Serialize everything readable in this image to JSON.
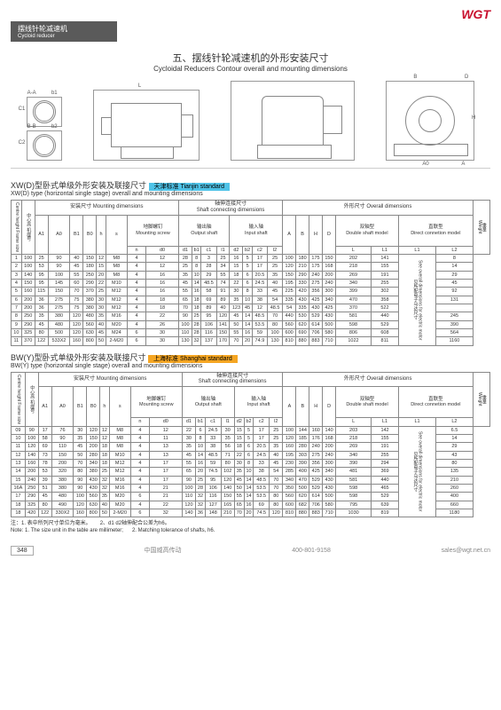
{
  "logo": "WGT",
  "header": {
    "cn": "摆线针轮减速机",
    "en": "Cycloid reducer"
  },
  "section": {
    "cn": "五、摆线针轮减速机的外形安装尺寸",
    "en": "Cycloidal Reducers Contour overall and mounting dimensions"
  },
  "diagram_labels": [
    "A-A",
    "b1",
    "C1",
    "B-B",
    "b2",
    "C2",
    "L",
    "B",
    "D",
    "B2",
    "b1",
    "H",
    "A0",
    "A"
  ],
  "sub1": {
    "title_cn": "XW(D)型卧式单级外形安装及联接尺寸",
    "title_en": "XW(D) type (horizontal single stage) overall and mounting dimensions",
    "badge": "天津标准 Tianjin standard",
    "badge_color": "#4fc3e8"
  },
  "sub2": {
    "title_cn": "BW(Y)型卧式单级外形安装及联接尺寸",
    "title_en": "BW(Y) type (horizontal single stage) overall and mounting dimensions",
    "badge": "上海标准 Shanghai standard",
    "badge_color": "#f5a623"
  },
  "group_headers": {
    "frame": {
      "cn": "中心高 机座号",
      "en": "Centre height Frame size"
    },
    "mount": {
      "cn": "安装尺寸",
      "en": "Mounting dimensions"
    },
    "mscrew": {
      "cn": "地脚螺钉",
      "en": "Mounting screw"
    },
    "shaft": {
      "cn": "轴伸连接尺寸",
      "en": "Shaft connecting dimensions"
    },
    "out": {
      "cn": "输出轴",
      "en": "Output shaft"
    },
    "in": {
      "cn": "输入轴",
      "en": "Input shaft"
    },
    "overall": {
      "cn": "外形尺寸",
      "en": "Overall dimensions"
    },
    "dbl": {
      "cn": "双轴型",
      "en": "Double shaft model"
    },
    "dir": {
      "cn": "直联型",
      "en": "Direct connetion model"
    },
    "weight": {
      "cn": "重量",
      "en": "Weight"
    },
    "motor_note": {
      "cn": "见所配电子马达尺寸",
      "en": "See overall dimensions for electric motor"
    }
  },
  "cols": [
    "A1",
    "A0",
    "B1",
    "B0",
    "h",
    "s",
    "n",
    "d0",
    "d1",
    "b1",
    "c1",
    "l1",
    "d2",
    "b2",
    "c2",
    "l2",
    "A",
    "B",
    "H",
    "D",
    "L",
    "L1",
    "L1",
    "L2"
  ],
  "table1": [
    [
      "1",
      "100",
      "25",
      "90",
      "40",
      "150",
      "12",
      "M8",
      "4",
      "12",
      "28",
      "8",
      "3",
      "25",
      "16",
      "5",
      "17",
      "25",
      "100",
      "180",
      "175",
      "150",
      "202",
      "141",
      "",
      "8"
    ],
    [
      "2",
      "100",
      "53",
      "90",
      "45",
      "180",
      "15",
      "M8",
      "4",
      "12",
      "25",
      "8",
      "28",
      "34",
      "15",
      "5",
      "17",
      "25",
      "120",
      "210",
      "175",
      "168",
      "218",
      "155",
      "",
      "14"
    ],
    [
      "3",
      "140",
      "95",
      "100",
      "55",
      "250",
      "20",
      "M8",
      "4",
      "16",
      "35",
      "10",
      "29",
      "55",
      "18",
      "6",
      "20.5",
      "35",
      "150",
      "290",
      "240",
      "200",
      "269",
      "191",
      "",
      "29"
    ],
    [
      "4",
      "150",
      "95",
      "145",
      "60",
      "290",
      "22",
      "M10",
      "4",
      "16",
      "45",
      "14",
      "48.5",
      "74",
      "22",
      "6",
      "24.5",
      "40",
      "195",
      "330",
      "275",
      "240",
      "340",
      "255",
      "",
      "45"
    ],
    [
      "5",
      "160",
      "115",
      "150",
      "70",
      "370",
      "25",
      "M12",
      "4",
      "16",
      "55",
      "16",
      "58",
      "91",
      "30",
      "8",
      "33",
      "45",
      "225",
      "420",
      "356",
      "300",
      "399",
      "302",
      "",
      "92"
    ],
    [
      "6",
      "200",
      "36",
      "275",
      "75",
      "380",
      "30",
      "M12",
      "4",
      "18",
      "65",
      "18",
      "69",
      "89",
      "35",
      "10",
      "38",
      "54",
      "335",
      "430",
      "425",
      "340",
      "470",
      "358",
      "",
      "131"
    ],
    [
      "7",
      "200",
      "36",
      "275",
      "75",
      "380",
      "30",
      "M12",
      "4",
      "18",
      "70",
      "18",
      "89",
      "40",
      "123",
      "45",
      "12",
      "48.5",
      "54",
      "335",
      "430",
      "425",
      "370",
      "522",
      "397",
      "",
      "165"
    ],
    [
      "8",
      "250",
      "35",
      "380",
      "120",
      "480",
      "35",
      "M16",
      "4",
      "22",
      "90",
      "25",
      "95",
      "120",
      "45",
      "14",
      "48.5",
      "70",
      "440",
      "530",
      "529",
      "430",
      "581",
      "440",
      "",
      "245"
    ],
    [
      "9",
      "290",
      "45",
      "480",
      "120",
      "560",
      "40",
      "M20",
      "4",
      "26",
      "100",
      "28",
      "106",
      "141",
      "50",
      "14",
      "53.5",
      "80",
      "560",
      "620",
      "614",
      "500",
      "598",
      "529",
      "",
      "390"
    ],
    [
      "10",
      "325",
      "80",
      "500",
      "120",
      "630",
      "45",
      "M24",
      "6",
      "30",
      "110",
      "28",
      "116",
      "150",
      "55",
      "16",
      "59",
      "100",
      "600",
      "690",
      "706",
      "580",
      "806",
      "608",
      "",
      "564"
    ],
    [
      "11",
      "370",
      "122",
      "533X2",
      "160",
      "800",
      "50",
      "2-M20",
      "6",
      "30",
      "130",
      "32",
      "137",
      "170",
      "70",
      "20",
      "74.9",
      "130",
      "810",
      "880",
      "883",
      "710",
      "1022",
      "811",
      "",
      "1160"
    ]
  ],
  "table2": [
    [
      "09",
      "90",
      "17",
      "76",
      "30",
      "120",
      "12",
      "M8",
      "4",
      "12",
      "22",
      "6",
      "24.5",
      "30",
      "15",
      "5",
      "17",
      "25",
      "100",
      "144",
      "160",
      "140",
      "203",
      "142",
      "",
      "6.5"
    ],
    [
      "10",
      "100",
      "58",
      "90",
      "35",
      "150",
      "12",
      "M8",
      "4",
      "11",
      "30",
      "8",
      "33",
      "35",
      "15",
      "5",
      "17",
      "25",
      "120",
      "185",
      "176",
      "168",
      "218",
      "155",
      "",
      "14"
    ],
    [
      "11",
      "120",
      "69",
      "110",
      "45",
      "200",
      "18",
      "M8",
      "4",
      "13",
      "35",
      "10",
      "38",
      "56",
      "18",
      "6",
      "20.5",
      "35",
      "160",
      "280",
      "240",
      "200",
      "269",
      "191",
      "",
      "29"
    ],
    [
      "12",
      "140",
      "73",
      "150",
      "50",
      "280",
      "18",
      "M10",
      "4",
      "13",
      "45",
      "14",
      "48.5",
      "71",
      "22",
      "6",
      "24.5",
      "40",
      "195",
      "303",
      "275",
      "240",
      "340",
      "255",
      "",
      "43"
    ],
    [
      "13",
      "160",
      "78",
      "200",
      "70",
      "340",
      "18",
      "M12",
      "4",
      "17",
      "55",
      "16",
      "59",
      "80",
      "30",
      "8",
      "33",
      "45",
      "230",
      "390",
      "356",
      "300",
      "390",
      "294",
      "",
      "80"
    ],
    [
      "14",
      "200",
      "53",
      "320",
      "80",
      "380",
      "25",
      "M12",
      "4",
      "17",
      "65",
      "20",
      "74.5",
      "102",
      "35",
      "10",
      "38",
      "54",
      "285",
      "400",
      "425",
      "340",
      "481",
      "369",
      "",
      "135"
    ],
    [
      "15",
      "240",
      "39",
      "380",
      "90",
      "430",
      "32",
      "M16",
      "4",
      "17",
      "90",
      "25",
      "95",
      "120",
      "45",
      "14",
      "48.5",
      "70",
      "340",
      "470",
      "529",
      "430",
      "581",
      "440",
      "",
      "210"
    ],
    [
      "16A",
      "250",
      "51",
      "380",
      "90",
      "430",
      "32",
      "M16",
      "4",
      "21",
      "100",
      "28",
      "106",
      "140",
      "50",
      "14",
      "53.5",
      "70",
      "350",
      "500",
      "529",
      "430",
      "598",
      "465",
      "",
      "260"
    ],
    [
      "17",
      "290",
      "45",
      "480",
      "100",
      "560",
      "35",
      "M20",
      "6",
      "21",
      "110",
      "32",
      "116",
      "150",
      "55",
      "14",
      "53.5",
      "80",
      "560",
      "620",
      "614",
      "500",
      "598",
      "529",
      "",
      "400"
    ],
    [
      "18",
      "325",
      "80",
      "490",
      "120",
      "630",
      "40",
      "M20",
      "4",
      "22",
      "120",
      "32",
      "127",
      "165",
      "65",
      "16",
      "69",
      "80",
      "600",
      "682",
      "706",
      "580",
      "795",
      "639",
      "",
      "660"
    ],
    [
      "18",
      "420",
      "122",
      "330X2",
      "160",
      "800",
      "50",
      "2-M20",
      "6",
      "32",
      "140",
      "36",
      "148",
      "210",
      "70",
      "20",
      "74.5",
      "120",
      "810",
      "880",
      "883",
      "710",
      "1030",
      "819",
      "",
      "1180"
    ]
  ],
  "notes": {
    "l1_cn": "注：1. 表中所列尺寸单位为毫米。",
    "l2_cn": "2、d1 d2轴伸配合公差为h6。",
    "l1_en": "Note: 1. The size unit in the table are millimeter;",
    "l2_en": "2. Matching tolerance of shafts, h6."
  },
  "footer": {
    "page": "348",
    "company": "中国威高传动",
    "phone": "400-801-9158",
    "email": "sales@wgt.net.cn"
  }
}
